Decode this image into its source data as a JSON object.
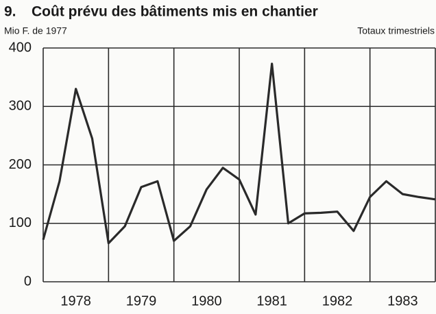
{
  "chart_data": {
    "type": "line",
    "chart_number": "9.",
    "title": "Coût prévu des bâtiments mis en chantier",
    "y_label": "Mio F. de 1977",
    "note": "Totaux trimestriels",
    "x": [
      1978,
      1978.25,
      1978.5,
      1978.75,
      1979,
      1979.25,
      1979.5,
      1979.75,
      1980,
      1980.25,
      1980.5,
      1980.75,
      1981,
      1981.25,
      1981.5,
      1981.75,
      1982,
      1982.25,
      1982.5,
      1982.75,
      1983,
      1983.25,
      1983.5,
      1983.75,
      1984
    ],
    "series": [
      {
        "color": "#2a2a2a",
        "values": [
          72,
          172,
          330,
          245,
          66,
          95,
          162,
          172,
          70,
          95,
          158,
          195,
          175,
          115,
          373,
          100,
          117,
          118,
          120,
          87,
          145,
          172,
          150,
          145,
          141
        ]
      }
    ],
    "xlim": [
      1978,
      1984
    ],
    "xticks": [
      {
        "value": 1978.5,
        "label": "1978"
      },
      {
        "value": 1979.5,
        "label": "1979"
      },
      {
        "value": 1980.5,
        "label": "1980"
      },
      {
        "value": 1981.5,
        "label": "1981"
      },
      {
        "value": 1982.5,
        "label": "1982"
      },
      {
        "value": 1983.5,
        "label": "1983"
      }
    ],
    "ylim": [
      0,
      400
    ],
    "yticks": [
      0,
      100,
      200,
      300,
      400
    ],
    "grid": true
  }
}
